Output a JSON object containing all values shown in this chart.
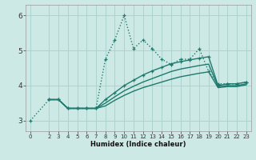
{
  "xlabel": "Humidex (Indice chaleur)",
  "x_ticks": [
    0,
    2,
    3,
    4,
    5,
    6,
    7,
    8,
    9,
    10,
    11,
    12,
    13,
    14,
    15,
    16,
    17,
    18,
    19,
    20,
    21,
    22,
    23
  ],
  "xlim": [
    -0.5,
    23.5
  ],
  "ylim": [
    2.7,
    6.3
  ],
  "y_ticks": [
    3,
    4,
    5,
    6
  ],
  "background_color": "#cce9e5",
  "grid_color": "#aad4cf",
  "line_color": "#1e7a6e",
  "series": [
    {
      "x": [
        0,
        2,
        3,
        4,
        5,
        6,
        7,
        8,
        9,
        10,
        11,
        12,
        13,
        14,
        15,
        16,
        17,
        18,
        19,
        20,
        21,
        22,
        23
      ],
      "y": [
        3.0,
        3.6,
        3.6,
        3.35,
        3.35,
        3.35,
        3.35,
        4.75,
        5.3,
        6.0,
        5.05,
        5.3,
        5.05,
        4.75,
        4.6,
        4.75,
        4.75,
        5.05,
        4.4,
        4.05,
        4.05,
        4.05,
        4.1
      ],
      "linestyle": "dotted",
      "marker": true,
      "linewidth": 1.0
    },
    {
      "x": [
        2,
        3,
        4,
        5,
        6,
        7,
        8,
        9,
        10,
        11,
        12,
        13,
        14,
        15,
        16,
        17,
        18,
        19,
        20,
        21,
        22,
        23
      ],
      "y": [
        3.6,
        3.6,
        3.35,
        3.35,
        3.35,
        3.35,
        3.6,
        3.8,
        4.0,
        4.15,
        4.3,
        4.42,
        4.52,
        4.62,
        4.68,
        4.73,
        4.78,
        4.82,
        4.0,
        4.05,
        4.05,
        4.1
      ],
      "linestyle": "solid",
      "marker": true,
      "linewidth": 1.0
    },
    {
      "x": [
        2,
        3,
        4,
        5,
        6,
        7,
        8,
        9,
        10,
        11,
        12,
        13,
        14,
        15,
        16,
        17,
        18,
        19,
        20,
        21,
        22,
        23
      ],
      "y": [
        3.6,
        3.6,
        3.35,
        3.35,
        3.35,
        3.35,
        3.5,
        3.68,
        3.85,
        3.98,
        4.1,
        4.2,
        4.3,
        4.4,
        4.47,
        4.52,
        4.57,
        4.61,
        3.97,
        4.0,
        4.0,
        4.05
      ],
      "linestyle": "solid",
      "marker": false,
      "linewidth": 1.0
    },
    {
      "x": [
        2,
        3,
        4,
        5,
        6,
        7,
        8,
        9,
        10,
        11,
        12,
        13,
        14,
        15,
        16,
        17,
        18,
        19,
        20,
        21,
        22,
        23
      ],
      "y": [
        3.6,
        3.6,
        3.35,
        3.35,
        3.35,
        3.35,
        3.42,
        3.58,
        3.72,
        3.84,
        3.94,
        4.02,
        4.1,
        4.18,
        4.25,
        4.3,
        4.35,
        4.39,
        3.94,
        3.97,
        3.97,
        4.02
      ],
      "linestyle": "solid",
      "marker": false,
      "linewidth": 1.0
    }
  ]
}
